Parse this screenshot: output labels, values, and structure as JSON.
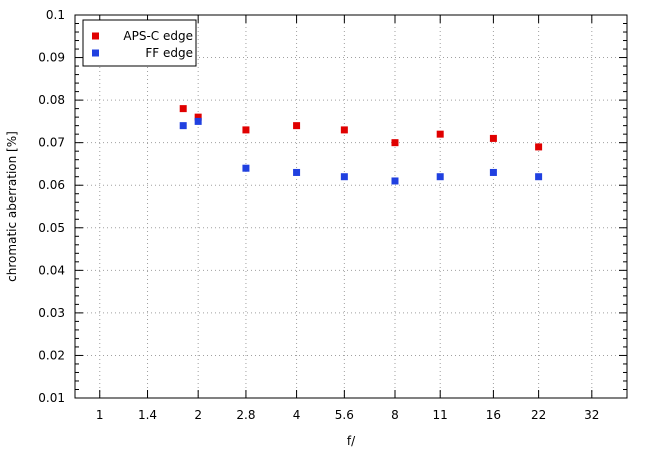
{
  "chart_data": {
    "type": "scatter",
    "title": "",
    "xlabel": "f/",
    "ylabel": "chromatic  aberration [%]",
    "x_scale": "log2",
    "x_ticks": [
      "1",
      "1.4",
      "2",
      "2.8",
      "4",
      "5.6",
      "8",
      "11",
      "16",
      "22",
      "32"
    ],
    "xlim": [
      0.84,
      41
    ],
    "ylim": [
      0.01,
      0.1
    ],
    "y_ticks": [
      "0.01",
      "0.02",
      "0.03",
      "0.04",
      "0.05",
      "0.06",
      "0.07",
      "0.08",
      "0.09",
      "0.1"
    ],
    "grid": true,
    "legend_position": "top-left",
    "series": [
      {
        "name": "APS-C edge",
        "color": "#e00000",
        "points": [
          {
            "x": 1.8,
            "y": 0.078
          },
          {
            "x": 2,
            "y": 0.076
          },
          {
            "x": 2.8,
            "y": 0.073
          },
          {
            "x": 4,
            "y": 0.074
          },
          {
            "x": 5.6,
            "y": 0.073
          },
          {
            "x": 8,
            "y": 0.07
          },
          {
            "x": 11,
            "y": 0.072
          },
          {
            "x": 16,
            "y": 0.071
          },
          {
            "x": 22,
            "y": 0.069
          }
        ]
      },
      {
        "name": "FF edge",
        "color": "#2040e0",
        "points": [
          {
            "x": 1.8,
            "y": 0.074
          },
          {
            "x": 2,
            "y": 0.075
          },
          {
            "x": 2.8,
            "y": 0.064
          },
          {
            "x": 4,
            "y": 0.063
          },
          {
            "x": 5.6,
            "y": 0.062
          },
          {
            "x": 8,
            "y": 0.061
          },
          {
            "x": 11,
            "y": 0.062
          },
          {
            "x": 16,
            "y": 0.063
          },
          {
            "x": 22,
            "y": 0.062
          }
        ]
      }
    ]
  }
}
